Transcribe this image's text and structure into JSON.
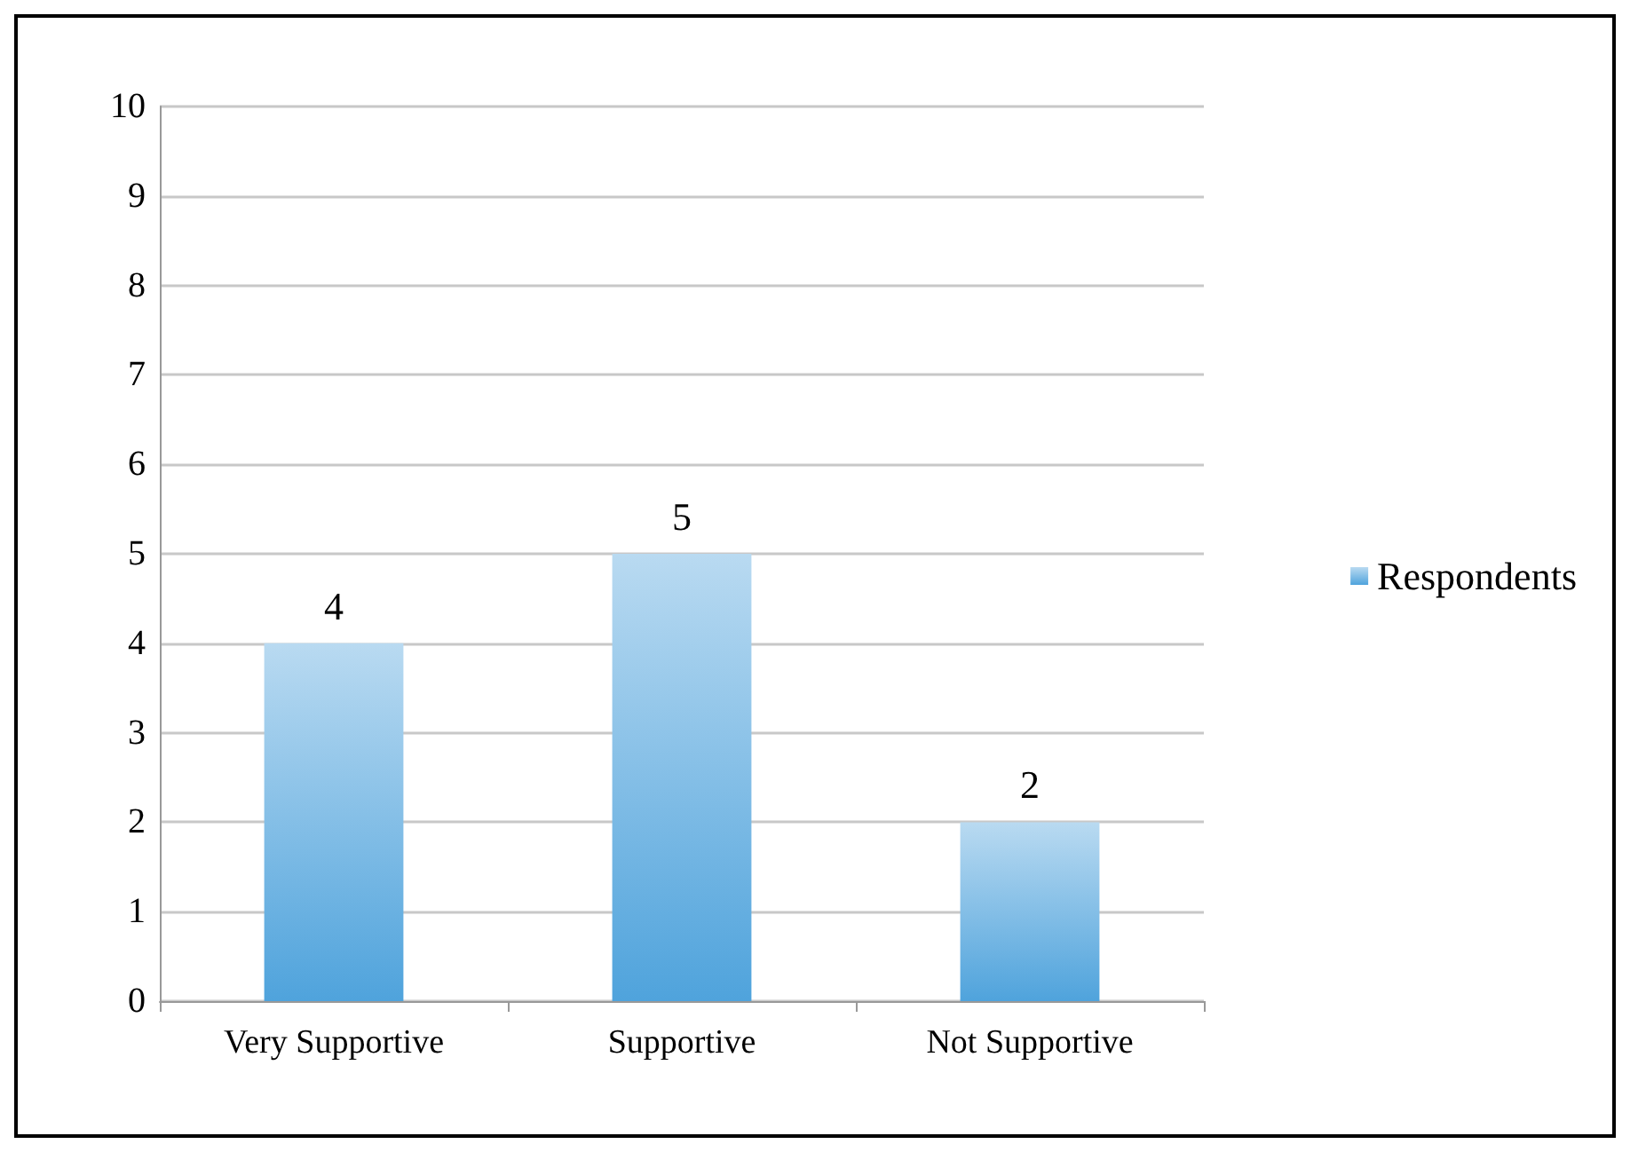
{
  "chart_data": {
    "type": "bar",
    "categories": [
      "Very Supportive",
      "Supportive",
      "Not Supportive"
    ],
    "series": [
      {
        "name": "Respondents",
        "color": "#4fa3dc",
        "values": [
          4,
          5,
          2
        ]
      }
    ],
    "ylim": [
      0,
      10
    ],
    "yticks": [
      0,
      1,
      2,
      3,
      4,
      5,
      6,
      7,
      8,
      9,
      10
    ],
    "grid": "y",
    "legend": "right",
    "data_labels": true
  }
}
